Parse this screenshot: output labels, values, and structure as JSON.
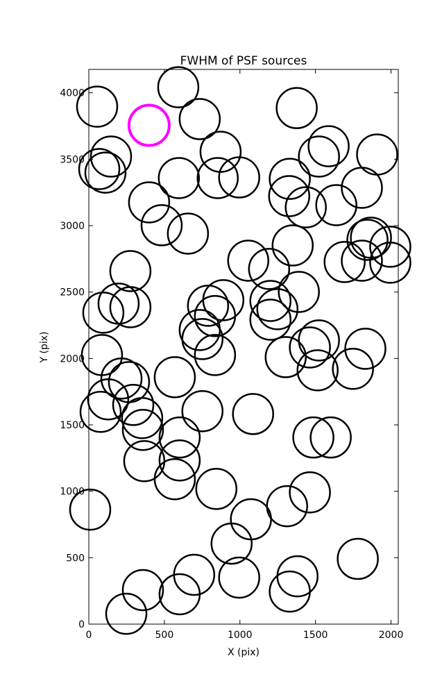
{
  "chart_data": {
    "type": "scatter",
    "title": "FWHM of PSF sources",
    "xlabel": "X (pix)",
    "ylabel": "Y (pix)",
    "xlim": [
      0,
      2048
    ],
    "ylim": [
      0,
      4176
    ],
    "xticks": [
      0,
      500,
      1000,
      1500,
      2000
    ],
    "yticks": [
      0,
      500,
      1000,
      1500,
      2000,
      2500,
      3000,
      3500,
      4000
    ],
    "series": [
      {
        "color": "#000000",
        "x": [
          55,
          592,
          734,
          1376,
          147,
          69,
          110,
          872,
          596,
          853,
          995,
          1330,
          1326,
          1523,
          1587,
          1908,
          1807,
          1436,
          1638,
          399,
          482,
          656,
          275,
          1055,
          1193,
          1349,
          1693,
          1807,
          1867,
          1844,
          1995,
          1995,
          197,
          275,
          96,
          1390,
          890,
          789,
          835,
          1202,
          1248,
          1202,
          734,
          752,
          835,
          87,
          1303,
          1463,
          1523,
          1514,
          1748,
          1830,
          216,
          266,
          569,
          128,
          78,
          294,
          353,
          358,
          752,
          1087,
          1486,
          1601,
          601,
          601,
          367,
          569,
          844,
          1463,
          9,
          1073,
          1312,
          945,
          1780,
          697,
          995,
          1381,
          1330,
          358,
          601,
          248
        ],
        "values": [
          3896,
          4042,
          3802,
          3885,
          3520,
          3426,
          3399,
          3556,
          3358,
          3358,
          3363,
          3352,
          3222,
          3520,
          3598,
          3535,
          3285,
          3138,
          3154,
          3175,
          3003,
          2940,
          2658,
          2736,
          2674,
          2851,
          2726,
          2736,
          2909,
          2893,
          2841,
          2721,
          2413,
          2386,
          2345,
          2501,
          2439,
          2397,
          2319,
          2433,
          2371,
          2292,
          2214,
          2146,
          2026,
          2026,
          2010,
          2083,
          2136,
          1911,
          1922,
          2073,
          1849,
          1822,
          1859,
          1692,
          1598,
          1650,
          1551,
          1462,
          1603,
          1582,
          1405,
          1405,
          1405,
          1232,
          1227,
          1091,
          1018,
          992,
          862,
          789,
          888,
          606,
          491,
          371,
          350,
          360,
          245,
          256,
          225,
          78
        ]
      },
      {
        "color": "#ff00ff",
        "x": [
          399
        ],
        "values": [
          3755
        ]
      }
    ]
  }
}
